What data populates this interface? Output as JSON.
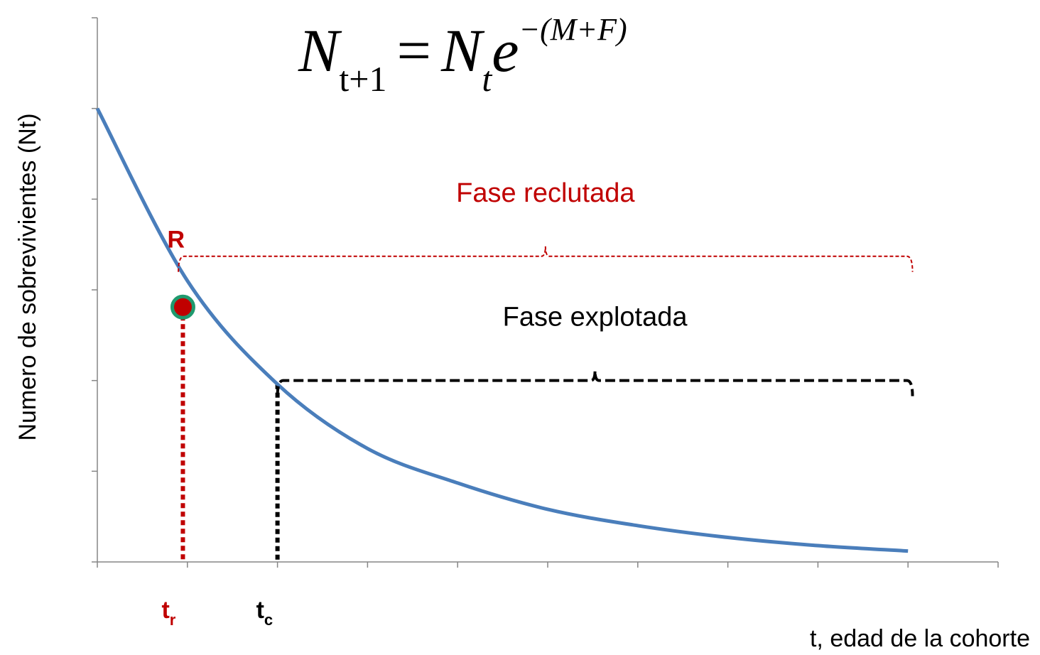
{
  "chart_data": {
    "type": "line",
    "formula": {
      "base": "N",
      "base_sub": "t+1",
      "equals": "=",
      "rhs": "N",
      "rhs_sub": "t",
      "exp_base": "e",
      "exponent": "−(M+F)"
    },
    "ylabel": "Numero  de sobrevivientes (Nt)",
    "xlabel": "t, edad de la cohorte",
    "x": [
      0,
      1,
      2,
      3,
      4,
      5,
      6,
      7,
      8,
      9
    ],
    "values": [
      5,
      3.1,
      1.96,
      1.25,
      0.87,
      0.58,
      0.4,
      0.27,
      0.18,
      0.12
    ],
    "color": "#4a7ebb",
    "xlim": [
      0,
      10
    ],
    "ylim": [
      0,
      6
    ],
    "xticks": [
      0,
      1,
      2,
      3,
      4,
      5,
      6,
      7,
      8,
      9,
      10
    ],
    "yticks": [
      0,
      1,
      2,
      3,
      4,
      5,
      6
    ],
    "recruit_point": {
      "label": "R",
      "x": 0.95,
      "y": 2.81,
      "color": "#c00000",
      "edge": "#1f9a6e"
    },
    "markers": [
      {
        "label": "t",
        "sub": "r",
        "x": 0.95,
        "y": 2.81,
        "color": "#c00000"
      },
      {
        "label": "t",
        "sub": "c",
        "x": 2.0,
        "y": 1.96,
        "color": "#000000"
      }
    ],
    "phases": [
      {
        "label": "Fase reclutada",
        "start": 0.9,
        "end": 9.05,
        "y": 3.37,
        "color": "#c00000"
      },
      {
        "label": "Fase explotada",
        "start": 2.0,
        "end": 9.05,
        "y": 2.0,
        "color": "#000000"
      }
    ]
  }
}
